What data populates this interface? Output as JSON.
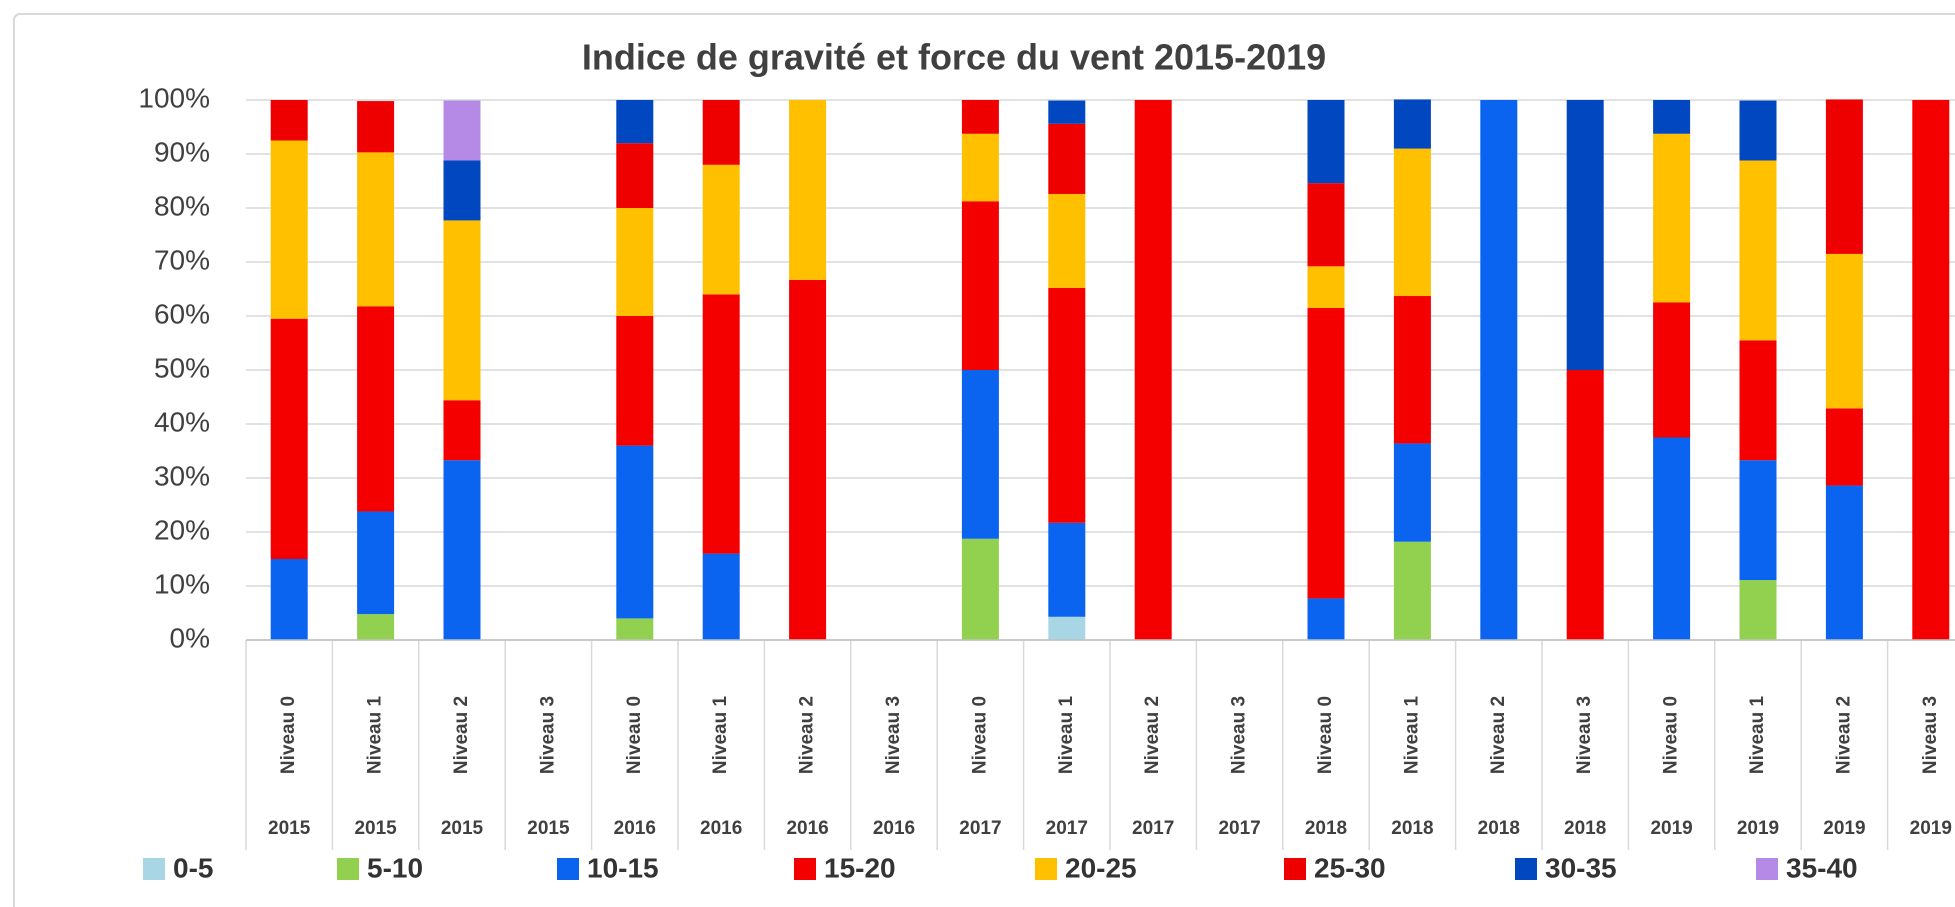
{
  "chart_data": {
    "type": "stacked_bar",
    "title": "Indice de gravité et force du vent 2015-2019",
    "categories": [
      "Niveau 0",
      "Niveau 1",
      "Niveau 2",
      "Niveau 3",
      "Niveau 0",
      "Niveau 1",
      "Niveau 2",
      "Niveau 3",
      "Niveau 0",
      "Niveau 1",
      "Niveau 2",
      "Niveau 3",
      "Niveau 0",
      "Niveau 1",
      "Niveau 2",
      "Niveau 3",
      "Niveau 0",
      "Niveau 1",
      "Niveau 2",
      "Niveau 3"
    ],
    "category_years": [
      "2015",
      "2015",
      "2015",
      "2015",
      "2016",
      "2016",
      "2016",
      "2016",
      "2017",
      "2017",
      "2017",
      "2017",
      "2018",
      "2018",
      "2018",
      "2018",
      "2019",
      "2019",
      "2019",
      "2019"
    ],
    "series": [
      {
        "name": "0-5",
        "color": "#a9d6e5",
        "values": [
          0,
          0,
          0,
          0,
          0,
          0,
          0,
          0,
          0,
          4.3,
          0,
          0,
          0,
          0,
          0,
          0,
          0,
          0,
          0,
          0
        ]
      },
      {
        "name": "5-10",
        "color": "#92d050",
        "values": [
          0,
          4.8,
          0,
          0,
          4,
          0,
          0,
          0,
          18.75,
          0,
          0,
          0,
          0,
          18.2,
          0,
          0,
          0,
          11.1,
          0,
          0
        ]
      },
      {
        "name": "10-15",
        "color": "#0a64f0",
        "values": [
          15,
          19,
          33.3,
          0,
          32,
          16,
          0,
          0,
          31.25,
          17.4,
          0,
          0,
          7.7,
          18.2,
          100,
          0,
          37.5,
          22.2,
          28.6,
          0
        ]
      },
      {
        "name": "15-20",
        "color": "#f50000",
        "values": [
          44.5,
          38,
          11.1,
          0,
          24,
          48,
          66.7,
          0,
          31.25,
          43.5,
          100,
          0,
          53.8,
          27.3,
          0,
          50,
          25,
          22.2,
          14.3,
          100
        ]
      },
      {
        "name": "20-25",
        "color": "#ffc000",
        "values": [
          33,
          28.5,
          33.3,
          0,
          20,
          24,
          33.3,
          0,
          12.5,
          17.4,
          0,
          0,
          7.7,
          27.3,
          0,
          0,
          31.25,
          33.3,
          28.6,
          0
        ]
      },
      {
        "name": "25-30",
        "color": "#ee0000",
        "values": [
          7.5,
          9.5,
          0,
          0,
          12,
          12,
          0,
          0,
          6.25,
          13,
          0,
          0,
          15.4,
          0,
          0,
          0,
          0,
          0,
          28.6,
          0
        ]
      },
      {
        "name": "30-35",
        "color": "#0047c0",
        "values": [
          0,
          0,
          11.1,
          0,
          8,
          0,
          0,
          0,
          0,
          4.3,
          0,
          0,
          15.4,
          9.1,
          0,
          50,
          6.25,
          11.1,
          0,
          0
        ]
      },
      {
        "name": "35-40",
        "color": "#b48ae6",
        "values": [
          0,
          0,
          11.1,
          0,
          0,
          0,
          0,
          0,
          0,
          0,
          0,
          0,
          0,
          0,
          0,
          0,
          0,
          0,
          0,
          0
        ]
      }
    ],
    "ylim": [
      0,
      100
    ],
    "yticks": [
      {
        "value": 0,
        "label": "0%"
      },
      {
        "value": 10,
        "label": "10%"
      },
      {
        "value": 20,
        "label": "20%"
      },
      {
        "value": 30,
        "label": "30%"
      },
      {
        "value": 40,
        "label": "40%"
      },
      {
        "value": 50,
        "label": "50%"
      },
      {
        "value": 60,
        "label": "60%"
      },
      {
        "value": 70,
        "label": "70%"
      },
      {
        "value": 80,
        "label": "80%"
      },
      {
        "value": 90,
        "label": "90%"
      },
      {
        "value": 100,
        "label": "100%"
      }
    ],
    "grid": true,
    "legend": "bottom"
  }
}
